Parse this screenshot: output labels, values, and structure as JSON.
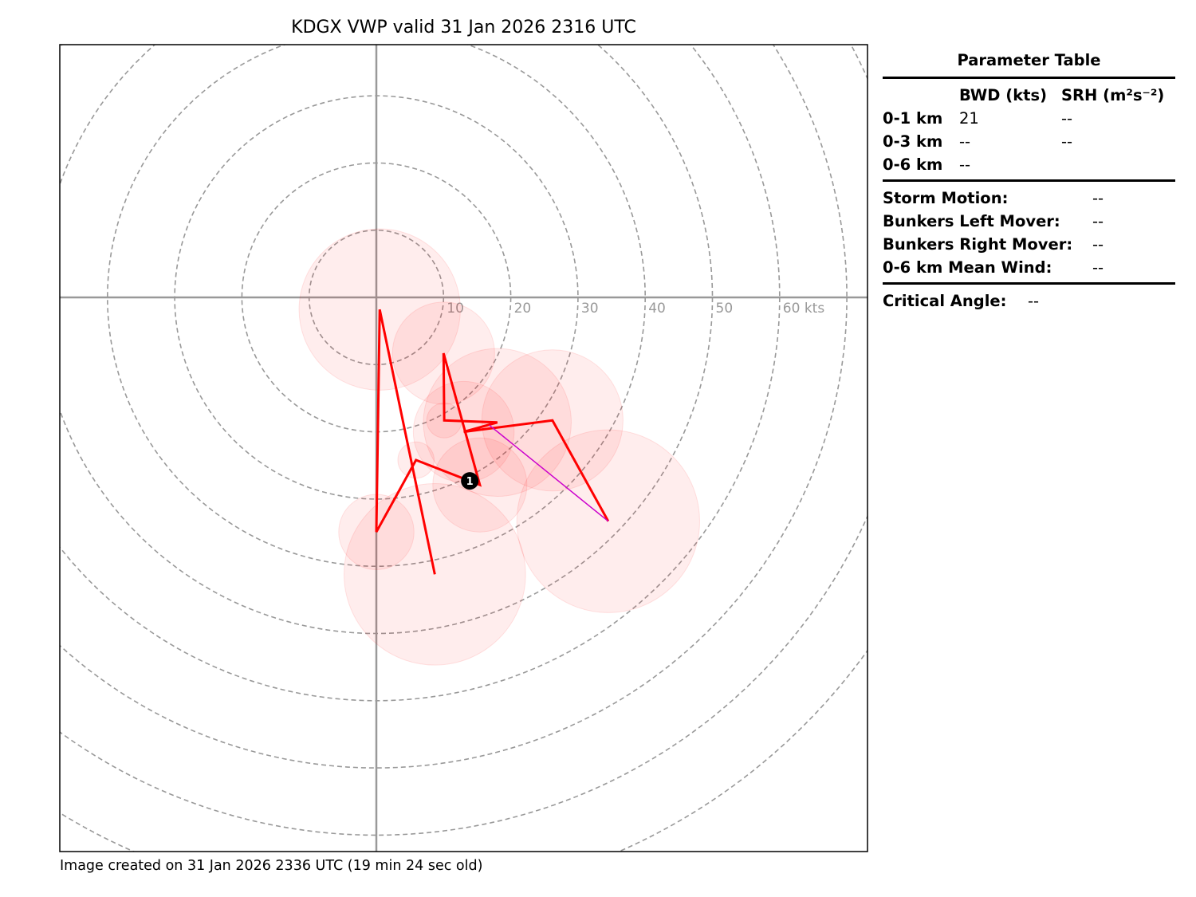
{
  "title": "KDGX VWP valid 31 Jan 2026 2316 UTC",
  "footer": "Image created on 31 Jan 2026 2336 UTC (19 min 24 sec old)",
  "chart_data": {
    "type": "line",
    "subtype": "hodograph",
    "title": "KDGX VWP valid 31 Jan 2026 2316 UTC",
    "units": "kts",
    "u_range": [
      -47,
      73
    ],
    "v_range": [
      -82.4,
      37.6
    ],
    "rings": [
      10,
      20,
      30,
      40,
      50,
      60,
      70,
      80,
      90
    ],
    "ring_labels": [
      "10",
      "20",
      "30",
      "40",
      "50",
      "60 kts"
    ],
    "grid": true,
    "series": [
      {
        "name": "hodograph",
        "color": "#ff0000",
        "points": [
          {
            "u": 8.7,
            "v": -41.2,
            "err": 13.5
          },
          {
            "u": 0.5,
            "v": -1.8,
            "err": 12.0
          },
          {
            "u": 0.0,
            "v": -34.9,
            "err": 5.6
          },
          {
            "u": 5.9,
            "v": -24.2,
            "err": 2.7
          },
          {
            "u": 15.4,
            "v": -27.9,
            "err": 7.0
          },
          {
            "u": 10.0,
            "v": -8.3,
            "err": 7.6
          },
          {
            "u": 10.1,
            "v": -18.3,
            "err": 2.6
          },
          {
            "u": 18.0,
            "v": -18.6,
            "err": 11.0
          },
          {
            "u": 13.0,
            "v": -20.0,
            "err": 7.5
          },
          {
            "u": 26.2,
            "v": -18.3,
            "err": 10.5
          },
          {
            "u": 34.5,
            "v": -33.3,
            "err": 13.6
          }
        ]
      },
      {
        "name": "shear-vector",
        "color": "#cc00cc",
        "points": [
          {
            "u": 16.8,
            "v": -19.0
          },
          {
            "u": 34.5,
            "v": -33.3
          }
        ]
      }
    ],
    "markers": [
      {
        "label": "1",
        "u": 13.9,
        "v": -27.3
      }
    ]
  },
  "table": {
    "title": "Parameter Table",
    "col_bwd": "BWD (kts)",
    "col_srh": "SRH (m²s⁻²)",
    "rows": [
      {
        "label": "0-1 km",
        "bwd": "21",
        "srh": "--"
      },
      {
        "label": "0-3 km",
        "bwd": "--",
        "srh": "--"
      },
      {
        "label": "0-6 km",
        "bwd": "--",
        "srh": ""
      }
    ],
    "motion": [
      {
        "label": "Storm Motion:",
        "value": "--"
      },
      {
        "label": "Bunkers Left Mover:",
        "value": "--"
      },
      {
        "label": "Bunkers Right Mover:",
        "value": "--"
      },
      {
        "label": "0-6 km Mean Wind:",
        "value": "--"
      }
    ],
    "critical_label": "Critical Angle:",
    "critical_value": "--"
  }
}
